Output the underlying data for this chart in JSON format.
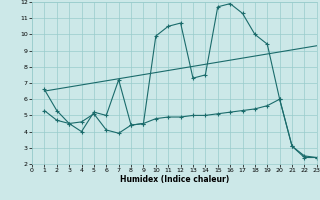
{
  "bg_color": "#cce8e8",
  "grid_color": "#99cccc",
  "line_color": "#1a6b6b",
  "line_width": 0.8,
  "marker": "+",
  "marker_size": 3,
  "marker_lw": 0.8,
  "xlabel": "Humidex (Indice chaleur)",
  "xlabel_fontsize": 5.5,
  "xlabel_bold": true,
  "xlim": [
    0,
    23
  ],
  "ylim": [
    2,
    12
  ],
  "xticks": [
    0,
    1,
    2,
    3,
    4,
    5,
    6,
    7,
    8,
    9,
    10,
    11,
    12,
    13,
    14,
    15,
    16,
    17,
    18,
    19,
    20,
    21,
    22,
    23
  ],
  "yticks": [
    2,
    3,
    4,
    5,
    6,
    7,
    8,
    9,
    10,
    11,
    12
  ],
  "tick_fontsize": 4.5,
  "line1_x": [
    1,
    2,
    3,
    4,
    5,
    6,
    7,
    8,
    9,
    10,
    11,
    12,
    13,
    14,
    15,
    16,
    17,
    18,
    19,
    20,
    21,
    22,
    23
  ],
  "line1_y": [
    6.6,
    5.3,
    4.5,
    4.0,
    5.2,
    5.0,
    7.2,
    4.4,
    4.5,
    9.9,
    10.5,
    10.7,
    7.3,
    7.5,
    11.7,
    11.9,
    11.3,
    10.0,
    9.4,
    6.0,
    3.1,
    2.4,
    2.4
  ],
  "line2_x": [
    1,
    23
  ],
  "line2_y": [
    6.5,
    9.3
  ],
  "line3_x": [
    1,
    2,
    3,
    4,
    5,
    6,
    7,
    8,
    9,
    10,
    11,
    12,
    13,
    14,
    15,
    16,
    17,
    18,
    19,
    20,
    21,
    22,
    23
  ],
  "line3_y": [
    5.3,
    4.7,
    4.5,
    4.6,
    5.1,
    4.1,
    3.9,
    4.4,
    4.5,
    4.8,
    4.9,
    4.9,
    5.0,
    5.0,
    5.1,
    5.2,
    5.3,
    5.4,
    5.6,
    6.0,
    3.1,
    2.5,
    2.4
  ]
}
